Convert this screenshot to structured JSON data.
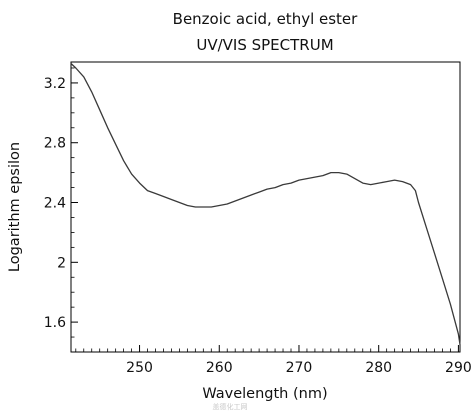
{
  "chart_data": {
    "type": "line",
    "title": "Benzoic acid, ethyl ester",
    "subtitle": "UV/VIS SPECTRUM",
    "xlabel": "Wavelength (nm)",
    "ylabel": "Logarithm epsilon",
    "xlim": [
      241.4,
      290.2
    ],
    "ylim": [
      1.4,
      3.34
    ],
    "xticks": [
      250,
      260,
      270,
      280,
      290
    ],
    "yticks": [
      1.6,
      2,
      2.4,
      2.8,
      3.2
    ],
    "xtick_labels": [
      "250",
      "260",
      "270",
      "280",
      "290"
    ],
    "ytick_labels": [
      "1.6",
      "2",
      "2.4",
      "2.8",
      "3.2"
    ],
    "grid": false,
    "series": [
      {
        "color": "#3a3a3a",
        "x": [
          241.4,
          242,
          243,
          244,
          245,
          246,
          247,
          248,
          249,
          250,
          251,
          252,
          253,
          254,
          255,
          256,
          257,
          258,
          259,
          260,
          261,
          262,
          263,
          264,
          265,
          266,
          267,
          268,
          269,
          270,
          271,
          272,
          273,
          274,
          275,
          276,
          277,
          278,
          279,
          280,
          281,
          282,
          283,
          284,
          284.6,
          285,
          286,
          287,
          288,
          289,
          290,
          290.2
        ],
        "y": [
          3.33,
          3.3,
          3.24,
          3.14,
          3.02,
          2.9,
          2.79,
          2.68,
          2.59,
          2.53,
          2.48,
          2.46,
          2.44,
          2.42,
          2.4,
          2.38,
          2.37,
          2.37,
          2.37,
          2.38,
          2.39,
          2.41,
          2.43,
          2.45,
          2.47,
          2.49,
          2.5,
          2.52,
          2.53,
          2.55,
          2.56,
          2.57,
          2.58,
          2.6,
          2.6,
          2.59,
          2.56,
          2.53,
          2.52,
          2.53,
          2.54,
          2.55,
          2.54,
          2.52,
          2.48,
          2.4,
          2.23,
          2.06,
          1.89,
          1.72,
          1.52,
          1.45
        ]
      }
    ]
  },
  "watermark": "盖德化工网"
}
